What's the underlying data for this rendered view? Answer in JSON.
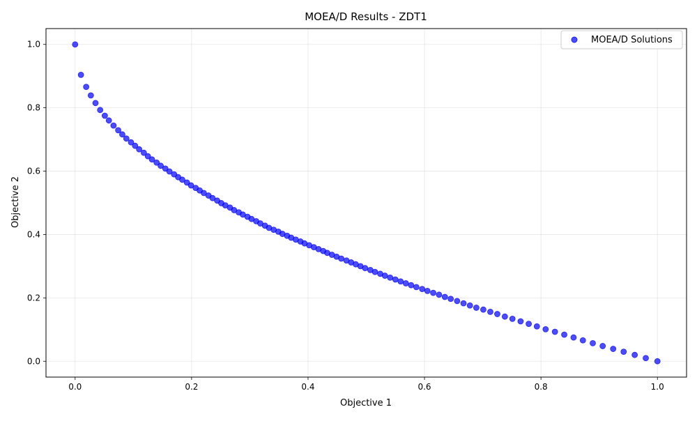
{
  "chart_data": {
    "type": "scatter",
    "title": "MOEA/D Results - ZDT1",
    "xlabel": "Objective 1",
    "ylabel": "Objective 2",
    "xlim": [
      -0.05,
      1.05
    ],
    "ylim": [
      -0.05,
      1.05
    ],
    "xticks": [
      0.0,
      0.2,
      0.4,
      0.6,
      0.8,
      1.0
    ],
    "yticks": [
      0.0,
      0.2,
      0.4,
      0.6,
      0.8,
      1.0
    ],
    "xtick_labels": [
      "0.0",
      "0.2",
      "0.4",
      "0.6",
      "0.8",
      "1.0"
    ],
    "ytick_labels": [
      "0.0",
      "0.2",
      "0.4",
      "0.6",
      "0.8",
      "1.0"
    ],
    "grid": true,
    "legend_position": "top-right",
    "series": [
      {
        "name": "MOEA/D Solutions",
        "color": "#0000ff",
        "points": [
          [
            0.0,
            1.0
          ],
          [
            0.01,
            0.904
          ],
          [
            0.019,
            0.866
          ],
          [
            0.027,
            0.839
          ],
          [
            0.035,
            0.815
          ],
          [
            0.043,
            0.793
          ],
          [
            0.051,
            0.775
          ],
          [
            0.058,
            0.76
          ],
          [
            0.066,
            0.744
          ],
          [
            0.074,
            0.729
          ],
          [
            0.081,
            0.716
          ],
          [
            0.088,
            0.703
          ],
          [
            0.096,
            0.691
          ],
          [
            0.103,
            0.68
          ],
          [
            0.11,
            0.669
          ],
          [
            0.118,
            0.658
          ],
          [
            0.125,
            0.647
          ],
          [
            0.132,
            0.637
          ],
          [
            0.14,
            0.627
          ],
          [
            0.147,
            0.617
          ],
          [
            0.155,
            0.608
          ],
          [
            0.162,
            0.599
          ],
          [
            0.17,
            0.59
          ],
          [
            0.177,
            0.581
          ],
          [
            0.184,
            0.573
          ],
          [
            0.192,
            0.564
          ],
          [
            0.199,
            0.555
          ],
          [
            0.207,
            0.547
          ],
          [
            0.214,
            0.539
          ],
          [
            0.221,
            0.531
          ],
          [
            0.229,
            0.523
          ],
          [
            0.236,
            0.515
          ],
          [
            0.244,
            0.507
          ],
          [
            0.251,
            0.499
          ],
          [
            0.258,
            0.492
          ],
          [
            0.266,
            0.485
          ],
          [
            0.273,
            0.477
          ],
          [
            0.281,
            0.47
          ],
          [
            0.288,
            0.463
          ],
          [
            0.296,
            0.456
          ],
          [
            0.303,
            0.449
          ],
          [
            0.311,
            0.442
          ],
          [
            0.318,
            0.435
          ],
          [
            0.326,
            0.428
          ],
          [
            0.333,
            0.421
          ],
          [
            0.341,
            0.415
          ],
          [
            0.349,
            0.409
          ],
          [
            0.356,
            0.402
          ],
          [
            0.364,
            0.396
          ],
          [
            0.371,
            0.39
          ],
          [
            0.379,
            0.384
          ],
          [
            0.387,
            0.378
          ],
          [
            0.394,
            0.372
          ],
          [
            0.402,
            0.366
          ],
          [
            0.41,
            0.36
          ],
          [
            0.418,
            0.354
          ],
          [
            0.426,
            0.348
          ],
          [
            0.433,
            0.342
          ],
          [
            0.441,
            0.336
          ],
          [
            0.449,
            0.33
          ],
          [
            0.457,
            0.324
          ],
          [
            0.466,
            0.318
          ],
          [
            0.474,
            0.312
          ],
          [
            0.482,
            0.306
          ],
          [
            0.49,
            0.3
          ],
          [
            0.498,
            0.294
          ],
          [
            0.507,
            0.288
          ],
          [
            0.515,
            0.282
          ],
          [
            0.524,
            0.276
          ],
          [
            0.532,
            0.27
          ],
          [
            0.541,
            0.264
          ],
          [
            0.55,
            0.258
          ],
          [
            0.559,
            0.252
          ],
          [
            0.568,
            0.246
          ],
          [
            0.577,
            0.24
          ],
          [
            0.586,
            0.234
          ],
          [
            0.596,
            0.228
          ],
          [
            0.605,
            0.222
          ],
          [
            0.615,
            0.216
          ],
          [
            0.625,
            0.21
          ],
          [
            0.635,
            0.203
          ],
          [
            0.645,
            0.197
          ],
          [
            0.656,
            0.19
          ],
          [
            0.667,
            0.183
          ],
          [
            0.678,
            0.176
          ],
          [
            0.689,
            0.169
          ],
          [
            0.701,
            0.163
          ],
          [
            0.713,
            0.156
          ],
          [
            0.725,
            0.149
          ],
          [
            0.738,
            0.141
          ],
          [
            0.751,
            0.134
          ],
          [
            0.765,
            0.126
          ],
          [
            0.779,
            0.118
          ],
          [
            0.793,
            0.11
          ],
          [
            0.808,
            0.101
          ],
          [
            0.824,
            0.093
          ],
          [
            0.84,
            0.084
          ],
          [
            0.856,
            0.075
          ],
          [
            0.872,
            0.066
          ],
          [
            0.889,
            0.057
          ],
          [
            0.906,
            0.048
          ],
          [
            0.924,
            0.039
          ],
          [
            0.942,
            0.03
          ],
          [
            0.961,
            0.02
          ],
          [
            0.98,
            0.01
          ],
          [
            1.0,
            0.0
          ]
        ]
      }
    ]
  }
}
